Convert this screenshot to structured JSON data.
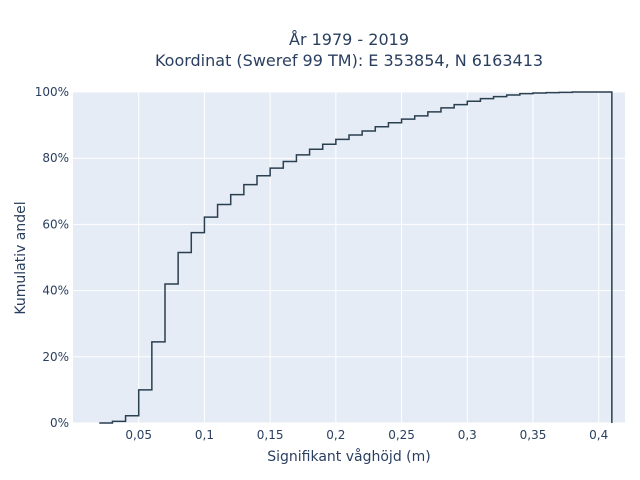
{
  "chart_data": {
    "type": "line",
    "line_shape": "step",
    "title_line1": "År 1979 - 2019",
    "title_line2": "Koordinat (Sweref 99 TM): E 353854, N 6163413",
    "xlabel": "Signifikant våghöjd (m)",
    "ylabel": "Kumulativ andel",
    "xlim": [
      0.0,
      0.42
    ],
    "ylim": [
      0,
      1.0
    ],
    "x_ticks": [
      0.05,
      0.1,
      0.15,
      0.2,
      0.25,
      0.3,
      0.35,
      0.4
    ],
    "x_tick_labels": [
      "0,05",
      "0,1",
      "0,15",
      "0,2",
      "0,25",
      "0,3",
      "0,35",
      "0,4"
    ],
    "y_ticks": [
      0,
      0.2,
      0.4,
      0.6,
      0.8,
      1.0
    ],
    "y_tick_labels": [
      "0%",
      "20%",
      "40%",
      "60%",
      "80%",
      "100%"
    ],
    "grid": true,
    "colors": {
      "plot_bg": "#e5ecf6",
      "line": "#2a3f4f",
      "grid": "#ffffff",
      "text": "#2a3f5f"
    },
    "series": [
      {
        "x": [
          0.02,
          0.03,
          0.04,
          0.05,
          0.06,
          0.07,
          0.08,
          0.09,
          0.1,
          0.11,
          0.12,
          0.13,
          0.14,
          0.15,
          0.16,
          0.17,
          0.18,
          0.19,
          0.2,
          0.21,
          0.22,
          0.23,
          0.24,
          0.25,
          0.26,
          0.27,
          0.28,
          0.29,
          0.3,
          0.31,
          0.32,
          0.33,
          0.34,
          0.35,
          0.36,
          0.37,
          0.38,
          0.39,
          0.4,
          0.41
        ],
        "y": [
          0.0,
          0.005,
          0.022,
          0.1,
          0.245,
          0.42,
          0.515,
          0.575,
          0.622,
          0.66,
          0.69,
          0.72,
          0.747,
          0.77,
          0.79,
          0.81,
          0.827,
          0.842,
          0.857,
          0.87,
          0.882,
          0.895,
          0.907,
          0.918,
          0.928,
          0.94,
          0.952,
          0.962,
          0.972,
          0.98,
          0.986,
          0.991,
          0.995,
          0.997,
          0.998,
          0.999,
          1.0,
          1.0,
          1.0,
          0.0
        ]
      }
    ]
  }
}
